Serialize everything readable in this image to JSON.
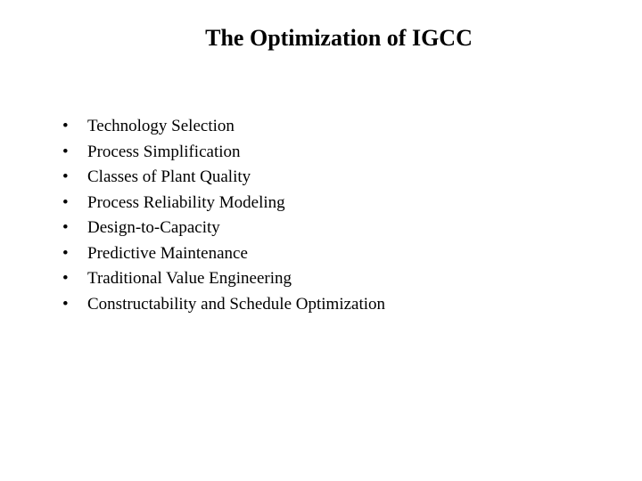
{
  "slide": {
    "title": "The Optimization of IGCC",
    "bullets": [
      "Technology Selection",
      "Process Simplification",
      "Classes of Plant Quality",
      "Process Reliability Modeling",
      "Design-to-Capacity",
      "Predictive Maintenance",
      "Traditional Value Engineering",
      "Constructability and Schedule Optimization"
    ],
    "bullet_marker": "•",
    "title_fontsize": 26,
    "body_fontsize": 19,
    "background_color": "#ffffff",
    "text_color": "#000000"
  }
}
